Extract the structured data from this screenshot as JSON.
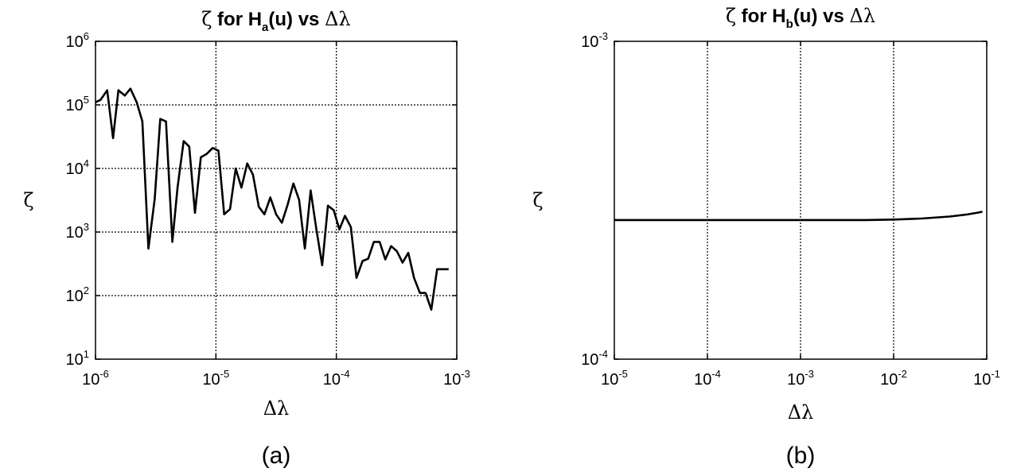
{
  "chart_data": [
    {
      "type": "line",
      "title": {
        "greek": "ζ",
        "text": " for H",
        "sub": "a",
        "rest": "(u) vs ",
        "delta": "Δλ"
      },
      "xlabel": "Δλ",
      "ylabel": "ζ",
      "caption": "(a)",
      "xscale": "log",
      "yscale": "log",
      "xlim": [
        1e-06,
        0.001
      ],
      "ylim": [
        10,
        1000000.0
      ],
      "grid": true,
      "xticks": [
        {
          "base": "10",
          "exp": "-6"
        },
        {
          "base": "10",
          "exp": "-5"
        },
        {
          "base": "10",
          "exp": "-4"
        },
        {
          "base": "10",
          "exp": "-3"
        }
      ],
      "yticks": [
        {
          "base": "10",
          "exp": "1"
        },
        {
          "base": "10",
          "exp": "2"
        },
        {
          "base": "10",
          "exp": "3"
        },
        {
          "base": "10",
          "exp": "4"
        },
        {
          "base": "10",
          "exp": "5"
        },
        {
          "base": "10",
          "exp": "6"
        }
      ],
      "series": [
        {
          "x": [
            1e-06,
            1.1e-06,
            1.25e-06,
            1.4e-06,
            1.55e-06,
            1.75e-06,
            1.95e-06,
            2.2e-06,
            2.45e-06,
            2.75e-06,
            3.1e-06,
            3.45e-06,
            3.85e-06,
            4.35e-06,
            4.8e-06,
            5.4e-06,
            6e-06,
            6.7e-06,
            7.5e-06,
            8.4e-06,
            9.4e-06,
            1.05e-05,
            1.17e-05,
            1.31e-05,
            1.46e-05,
            1.63e-05,
            1.82e-05,
            2.03e-05,
            2.27e-05,
            2.53e-05,
            2.83e-05,
            3.16e-05,
            3.53e-05,
            3.94e-05,
            4.4e-05,
            4.91e-05,
            5.48e-05,
            6.12e-05,
            6.83e-05,
            7.63e-05,
            8.52e-05,
            9.51e-05,
            0.000106,
            0.000118,
            0.000132,
            0.000147,
            0.000165,
            0.000184,
            0.000205,
            0.000229,
            0.000255,
            0.000285,
            0.000318,
            0.000355,
            0.000396,
            0.000442,
            0.000494,
            0.000551,
            0.000615,
            0.000687,
            0.000767,
            0.000856
          ],
          "y": [
            110000,
            120000,
            170000,
            30000,
            170000,
            140000,
            180000,
            110000,
            55000,
            550,
            3300,
            60000,
            55000,
            700,
            5000,
            27000,
            22000,
            2000,
            15000,
            17000,
            21000,
            19000,
            1900,
            2300,
            10000,
            5000,
            12000,
            8000,
            2500,
            1900,
            3500,
            1900,
            1400,
            2700,
            5800,
            3200,
            550,
            4500,
            1100,
            300,
            2600,
            2200,
            1100,
            1800,
            1200,
            190,
            350,
            380,
            700,
            700,
            370,
            600,
            500,
            330,
            470,
            190,
            110,
            110,
            60,
            260,
            260,
            260
          ]
        }
      ]
    },
    {
      "type": "line",
      "title": {
        "greek": "ζ",
        "text": " for H",
        "sub": "b",
        "rest": "(u) vs ",
        "delta": "Δλ"
      },
      "xlabel": "Δλ",
      "ylabel": "ζ",
      "caption": "(b)",
      "xscale": "log",
      "yscale": "log",
      "xlim": [
        1e-05,
        0.1
      ],
      "ylim": [
        0.0001,
        0.001
      ],
      "grid": true,
      "xticks": [
        {
          "base": "10",
          "exp": "-5"
        },
        {
          "base": "10",
          "exp": "-4"
        },
        {
          "base": "10",
          "exp": "-3"
        },
        {
          "base": "10",
          "exp": "-2"
        },
        {
          "base": "10",
          "exp": "-1"
        }
      ],
      "yticks": [
        {
          "base": "10",
          "exp": "-4"
        },
        {
          "base": "10",
          "exp": "-3"
        }
      ],
      "series": [
        {
          "x": [
            1e-05,
            3e-05,
            0.0001,
            0.0003,
            0.001,
            0.003,
            0.005,
            0.01,
            0.02,
            0.04,
            0.06,
            0.08,
            0.09
          ],
          "y": [
            0.000274,
            0.000274,
            0.000274,
            0.000274,
            0.000274,
            0.000274,
            0.000274,
            0.000275,
            0.000277,
            0.000281,
            0.000285,
            0.000289,
            0.000291
          ]
        }
      ]
    }
  ]
}
